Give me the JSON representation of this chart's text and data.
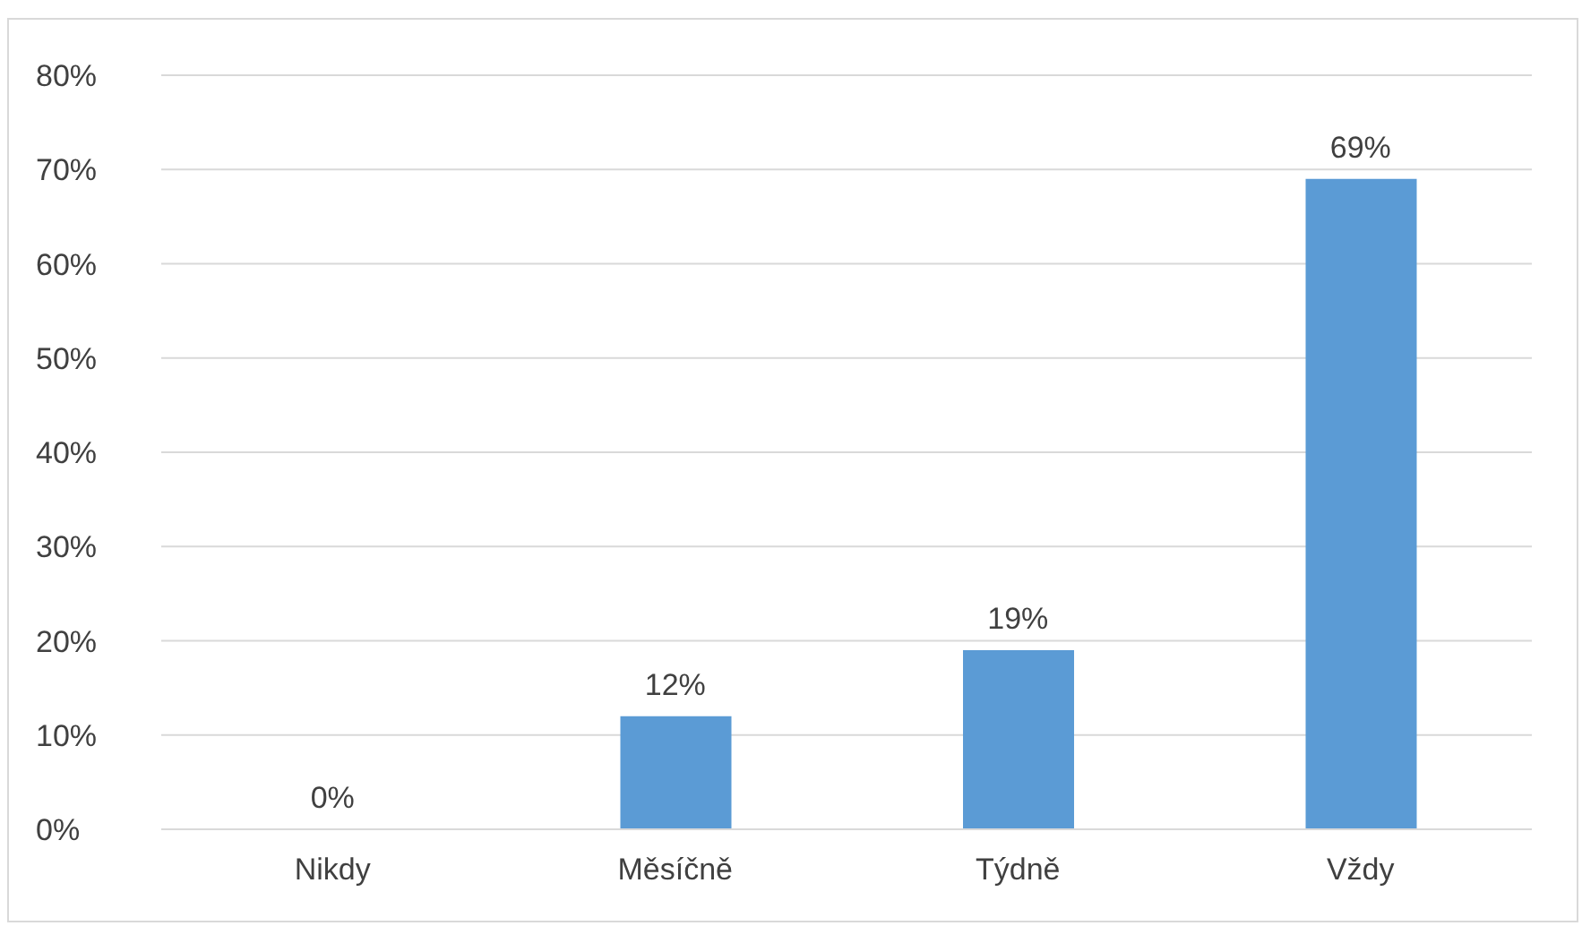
{
  "chart_data": {
    "type": "bar",
    "categories": [
      "Nikdy",
      "Měsíčně",
      "Týdně",
      "Vždy"
    ],
    "values": [
      0,
      12,
      19,
      69
    ],
    "value_labels": [
      "0%",
      "12%",
      "19%",
      "69%"
    ],
    "color": "#5b9bd5",
    "ylim": [
      0,
      80
    ],
    "yticks": [
      {
        "value": 0,
        "label": "0%"
      },
      {
        "value": 10,
        "label": "10%"
      },
      {
        "value": 20,
        "label": "20%"
      },
      {
        "value": 30,
        "label": "30%"
      },
      {
        "value": 40,
        "label": "40%"
      },
      {
        "value": 50,
        "label": "50%"
      },
      {
        "value": 60,
        "label": "60%"
      },
      {
        "value": 70,
        "label": "70%"
      },
      {
        "value": 80,
        "label": "80%"
      }
    ],
    "grid": "y"
  }
}
